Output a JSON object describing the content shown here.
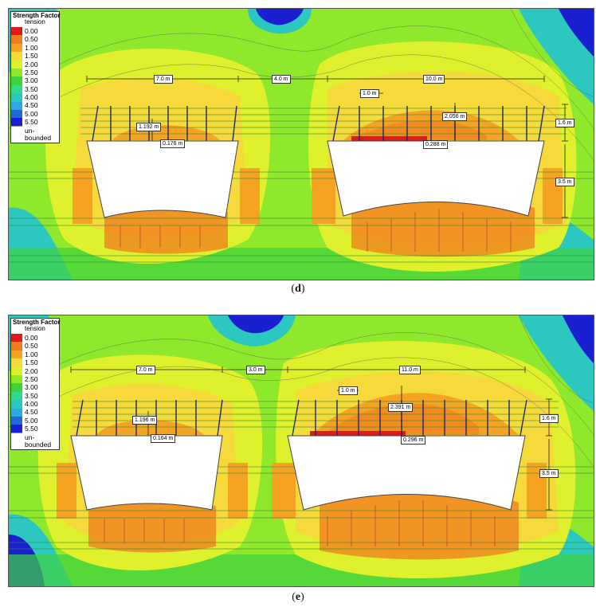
{
  "legend": {
    "title": "Strength Factor",
    "subtitle": "tension",
    "entries": [
      {
        "label": "0.00",
        "color": "#e0191b"
      },
      {
        "label": "0.50",
        "color": "#f07c1e"
      },
      {
        "label": "1.00",
        "color": "#f6a324"
      },
      {
        "label": "1.50",
        "color": "#f6d93a"
      },
      {
        "label": "2.00",
        "color": "#dff02c"
      },
      {
        "label": "2.50",
        "color": "#8fe82b"
      },
      {
        "label": "3.00",
        "color": "#3ed240"
      },
      {
        "label": "3.50",
        "color": "#32d98c"
      },
      {
        "label": "4.00",
        "color": "#2cc8c0"
      },
      {
        "label": "4.50",
        "color": "#2ca9e0"
      },
      {
        "label": "5.00",
        "color": "#2368d6"
      },
      {
        "label": "5.50",
        "color": "#1a1fd0"
      }
    ],
    "unbounded_label": "un-bounded",
    "unbounded_color": "#ffffff"
  },
  "panels": [
    {
      "caption_letter": "d",
      "dimensions": {
        "left_span": "7.0 m",
        "middle_span": "4.0 m",
        "right_span": "10.0 m",
        "bolt_spacing": "1.0 m",
        "left_zone_height": "1.192 m",
        "left_roof_gap": "0.176 m",
        "right_zone_height": "2.056 m",
        "right_roof_gap": "0.288 m",
        "top_layer": "1.6 m",
        "side_height": "3.5 m"
      }
    },
    {
      "caption_letter": "e",
      "dimensions": {
        "left_span": "7.0 m",
        "middle_span": "3.0 m",
        "right_span": "11.0 m",
        "bolt_spacing": "1.0 m",
        "left_zone_height": "1.196 m",
        "left_roof_gap": "0.164 m",
        "right_zone_height": "2.391 m",
        "right_roof_gap": "0.296 m",
        "top_layer": "1.6 m",
        "side_height": "3.5 m"
      }
    }
  ]
}
